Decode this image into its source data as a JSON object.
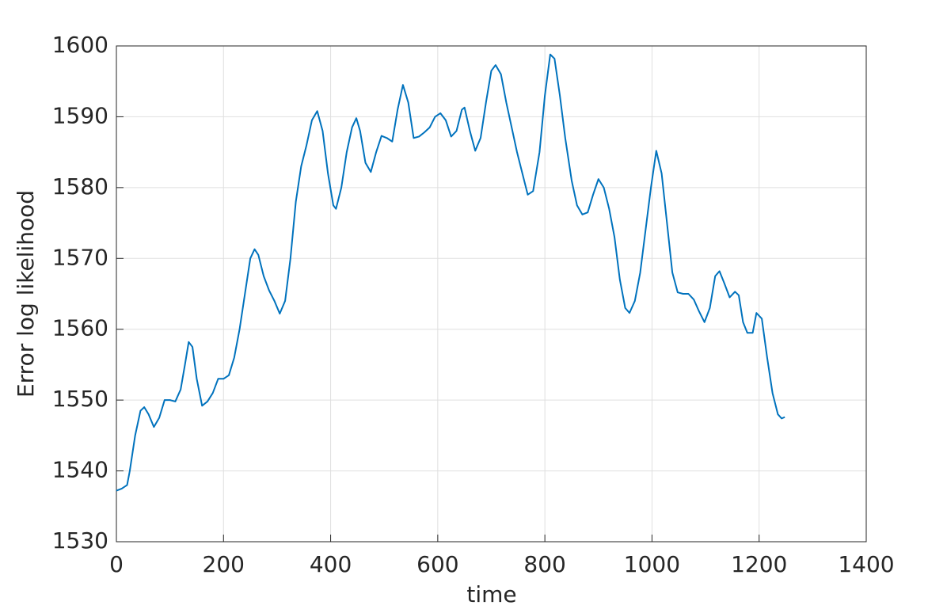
{
  "chart_data": {
    "type": "line",
    "xlabel": "time",
    "ylabel": "Error log likelihood",
    "x": [
      0,
      10,
      20,
      25,
      35,
      45,
      52,
      60,
      70,
      80,
      90,
      100,
      110,
      120,
      128,
      135,
      142,
      150,
      160,
      170,
      180,
      190,
      200,
      210,
      220,
      230,
      240,
      250,
      258,
      265,
      275,
      285,
      295,
      305,
      315,
      325,
      335,
      345,
      355,
      365,
      375,
      385,
      395,
      405,
      410,
      420,
      430,
      440,
      448,
      455,
      465,
      475,
      485,
      495,
      505,
      515,
      525,
      535,
      545,
      555,
      565,
      575,
      585,
      595,
      605,
      615,
      625,
      635,
      645,
      650,
      660,
      670,
      680,
      690,
      700,
      708,
      718,
      728,
      738,
      748,
      758,
      768,
      778,
      790,
      800,
      810,
      818,
      828,
      838,
      850,
      860,
      870,
      880,
      890,
      900,
      910,
      920,
      930,
      940,
      950,
      958,
      968,
      978,
      988,
      998,
      1008,
      1018,
      1028,
      1038,
      1048,
      1058,
      1068,
      1078,
      1088,
      1098,
      1108,
      1118,
      1126,
      1135,
      1145,
      1155,
      1162,
      1170,
      1178,
      1188,
      1195,
      1205,
      1215,
      1225,
      1235,
      1242,
      1248
    ],
    "values": [
      1537.2,
      1537.5,
      1538,
      1540,
      1545,
      1548.5,
      1549,
      1548,
      1546.2,
      1547.5,
      1550,
      1550,
      1549.8,
      1551.5,
      1555,
      1558.2,
      1557.5,
      1553,
      1549.2,
      1549.8,
      1551,
      1553,
      1553,
      1553.5,
      1556,
      1560,
      1565,
      1570,
      1571.3,
      1570.5,
      1567.5,
      1565.5,
      1564,
      1562.2,
      1564,
      1570,
      1578,
      1583,
      1586,
      1589.5,
      1590.8,
      1588,
      1582,
      1577.5,
      1577,
      1580,
      1585,
      1588.5,
      1589.8,
      1588,
      1583.5,
      1582.2,
      1585,
      1587.3,
      1587,
      1586.5,
      1591,
      1594.5,
      1592,
      1587,
      1587.2,
      1587.8,
      1588.5,
      1590,
      1590.5,
      1589.5,
      1587.2,
      1588,
      1591,
      1591.3,
      1588,
      1585.2,
      1587,
      1592,
      1596.5,
      1597.3,
      1596,
      1592,
      1588.5,
      1585,
      1582,
      1579,
      1579.5,
      1585,
      1593,
      1598.8,
      1598.2,
      1593,
      1587,
      1581,
      1577.5,
      1576.2,
      1576.5,
      1579,
      1581.2,
      1580,
      1577,
      1573,
      1567,
      1563,
      1562.3,
      1564,
      1568,
      1574,
      1580,
      1585.2,
      1582,
      1575,
      1568,
      1565.2,
      1565,
      1565,
      1564.2,
      1562.5,
      1561,
      1563,
      1567.5,
      1568.2,
      1566.5,
      1564.5,
      1565.3,
      1564.8,
      1561,
      1559.5,
      1559.5,
      1562.3,
      1561.5,
      1556,
      1551,
      1548,
      1547.4,
      1547.6
    ],
    "color": "#0072bd",
    "xlim": [
      0,
      1400
    ],
    "xticks": [
      0,
      200,
      400,
      600,
      800,
      1000,
      1200,
      1400
    ],
    "ylim": [
      1530,
      1600
    ],
    "yticks": [
      1530,
      1540,
      1550,
      1560,
      1570,
      1580,
      1590,
      1600
    ],
    "grid": true
  }
}
